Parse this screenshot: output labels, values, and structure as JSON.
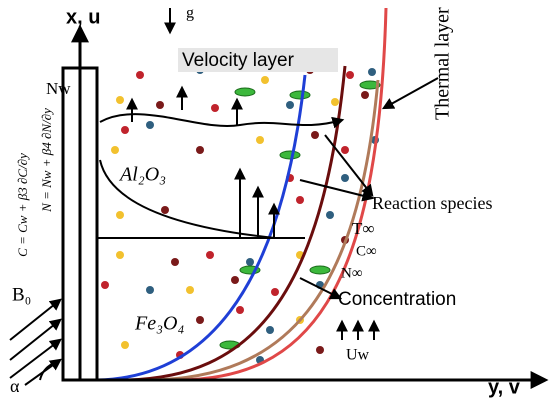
{
  "labels": {
    "x_axis": "x, u",
    "gravity": "g",
    "velocity_layer": "Velocity layer",
    "thermal_layer": "Thermal layer",
    "nw": "Nw",
    "n_condition": "N = Nw + β4 ∂N/∂y",
    "c_condition": "C = Cw + β3 ∂C/∂y",
    "al2o3": "Al₂O₃",
    "reaction_species": "Reaction species",
    "t_inf": "T∞",
    "c_inf": "C∞",
    "n_inf": "N∞",
    "concentration": "Concentration",
    "b0": "B₀",
    "fe3o4": "Fe₃O₄",
    "alpha": "α",
    "uw": "Uw",
    "y_axis": "y, v"
  }
}
